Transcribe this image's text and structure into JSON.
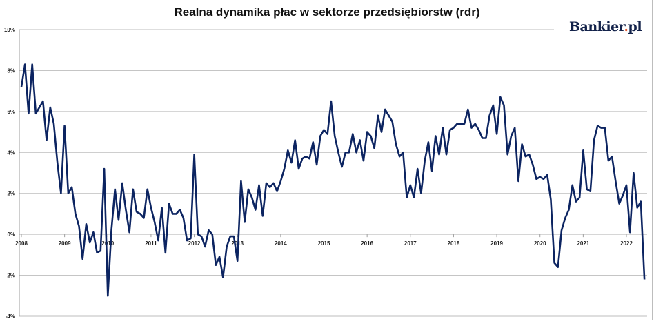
{
  "chart_data": {
    "type": "line",
    "title_underlined": "Realna",
    "title_rest": " dynamika płac w sektorze przedsiębiorstw (rdr)",
    "xlabel": "",
    "ylabel": "",
    "ylim": [
      -4,
      10
    ],
    "y_ticks": [
      "10%",
      "8%",
      "6%",
      "4%",
      "2%",
      "0%",
      "-2%",
      "-4%"
    ],
    "y_tick_values": [
      10,
      8,
      6,
      4,
      2,
      0,
      -2,
      -4
    ],
    "x_ticks": [
      "2008",
      "2009",
      "2010",
      "2011",
      "2012",
      "2013",
      "2014",
      "2015",
      "2016",
      "2017",
      "2018",
      "2019",
      "2020",
      "2021",
      "2022"
    ],
    "x_start": "2008-01",
    "frequency": "monthly",
    "grid": true,
    "line_color": "#0c2461",
    "series": [
      {
        "name": "Realna dynamika płac",
        "values": [
          7.2,
          8.3,
          5.9,
          8.3,
          5.9,
          6.2,
          6.5,
          4.6,
          6.2,
          5.4,
          3.5,
          2.0,
          5.3,
          2.0,
          2.3,
          1.0,
          0.4,
          -1.2,
          0.5,
          -0.4,
          0.1,
          -0.9,
          -0.8,
          3.2,
          -3.0,
          0.2,
          2.2,
          0.7,
          2.5,
          1.2,
          0.1,
          2.2,
          1.1,
          1.0,
          0.8,
          2.2,
          1.3,
          0.6,
          -0.3,
          1.3,
          -0.9,
          1.5,
          1.0,
          1.0,
          1.2,
          0.8,
          -0.3,
          -0.2,
          3.9,
          0.0,
          -0.1,
          -0.6,
          0.2,
          0.0,
          -1.5,
          -1.1,
          -2.1,
          -0.6,
          -0.1,
          -0.1,
          -1.3,
          2.6,
          0.6,
          2.2,
          1.8,
          1.2,
          2.4,
          0.9,
          2.5,
          2.3,
          2.5,
          2.1,
          2.6,
          3.2,
          4.1,
          3.5,
          4.6,
          3.2,
          3.7,
          3.8,
          3.7,
          4.5,
          3.4,
          4.8,
          5.1,
          4.9,
          6.5,
          4.8,
          4.0,
          3.3,
          4.0,
          4.0,
          4.9,
          4.0,
          4.6,
          3.6,
          5.0,
          4.8,
          4.2,
          5.8,
          5.0,
          6.1,
          5.8,
          5.5,
          4.4,
          3.8,
          4.0,
          1.8,
          2.4,
          1.8,
          3.2,
          2.0,
          3.6,
          4.5,
          3.1,
          4.8,
          3.9,
          5.2,
          3.9,
          5.1,
          5.2,
          5.4,
          5.4,
          5.4,
          6.1,
          5.2,
          5.4,
          5.1,
          4.7,
          4.7,
          5.8,
          6.3,
          4.9,
          6.7,
          6.3,
          3.9,
          4.8,
          5.2,
          2.6,
          4.4,
          3.8,
          3.9,
          3.4,
          2.7,
          2.8,
          2.7,
          2.9,
          1.7,
          -1.4,
          -1.6,
          0.2,
          0.8,
          1.2,
          2.4,
          1.6,
          1.8,
          4.1,
          2.2,
          2.1,
          4.6,
          5.3,
          5.2,
          5.2,
          3.6,
          3.8,
          2.6,
          1.5,
          1.9,
          2.4,
          0.1,
          3.0,
          1.3,
          1.6,
          -2.2
        ]
      }
    ]
  },
  "logo": {
    "main": "Bankier",
    "dot": ".",
    "suffix": "pl"
  }
}
